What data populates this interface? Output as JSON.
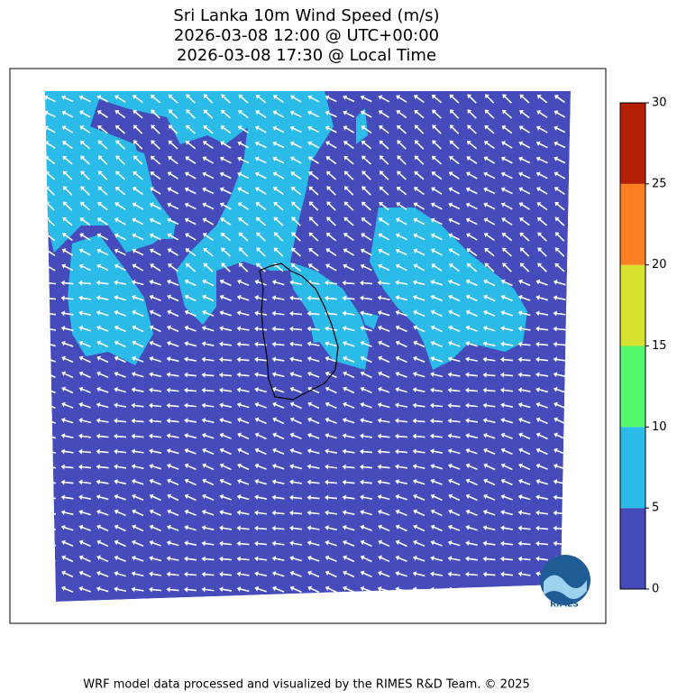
{
  "title": [
    "Sri Lanka 10m Wind Speed (m/s)",
    "2026-03-08 12:00 @ UTC+00:00",
    "2026-03-08 17:30 @ Local Time"
  ],
  "colorbar": {
    "levels": [
      0,
      5,
      10,
      15,
      20,
      25,
      30
    ],
    "colors": [
      "#464bbb",
      "#2bbbe8",
      "#55f96c",
      "#d8e030",
      "#fc8022",
      "#b31e04"
    ]
  },
  "logo": "RIMES",
  "footer": "WRF model data processed and visualized by the RIMES R&D Team. © 2025"
}
